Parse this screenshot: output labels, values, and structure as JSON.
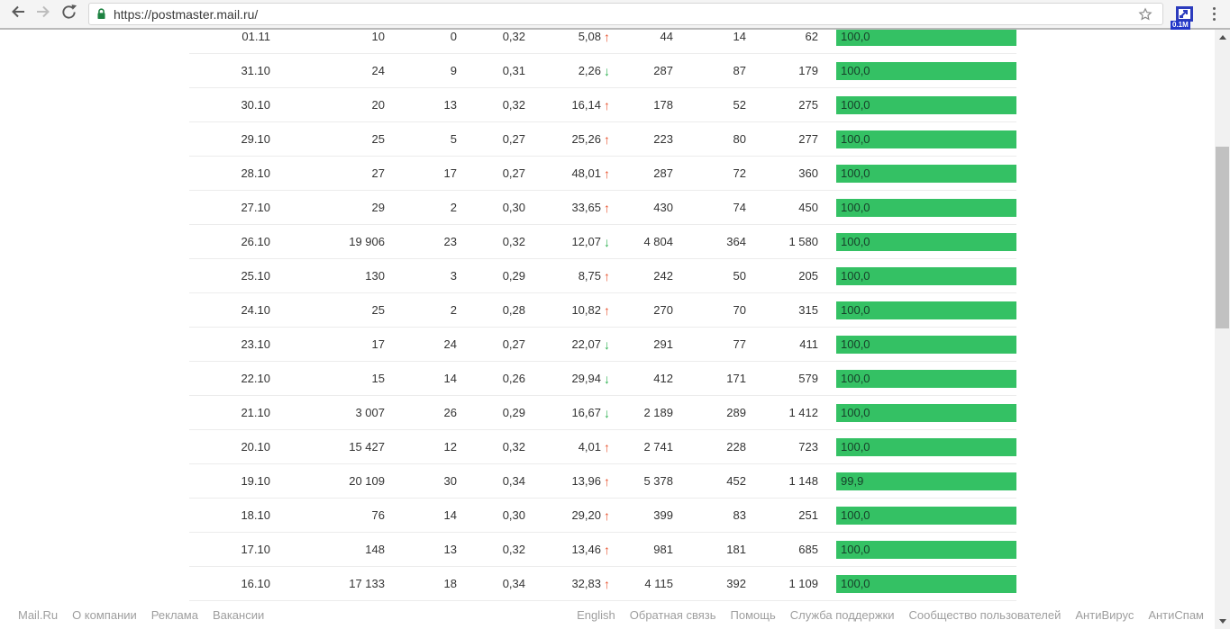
{
  "browser": {
    "url": "https://postmaster.mail.ru/",
    "extension_badge": "0.1M"
  },
  "colors": {
    "bar_green": "#34c164",
    "trend_up": "#e8542f",
    "trend_down": "#2eb151",
    "lock_green": "#1d8241"
  },
  "table": {
    "rows": [
      {
        "date": "01.11",
        "c2": "10",
        "c3": "0",
        "c4": "0,32",
        "trend_value": "5,08",
        "trend": "up",
        "c6": "44",
        "c7": "14",
        "c8": "62",
        "bar_label": "100,0",
        "bar_pct": 100
      },
      {
        "date": "31.10",
        "c2": "24",
        "c3": "9",
        "c4": "0,31",
        "trend_value": "2,26",
        "trend": "down",
        "c6": "287",
        "c7": "87",
        "c8": "179",
        "bar_label": "100,0",
        "bar_pct": 100
      },
      {
        "date": "30.10",
        "c2": "20",
        "c3": "13",
        "c4": "0,32",
        "trend_value": "16,14",
        "trend": "up",
        "c6": "178",
        "c7": "52",
        "c8": "275",
        "bar_label": "100,0",
        "bar_pct": 100
      },
      {
        "date": "29.10",
        "c2": "25",
        "c3": "5",
        "c4": "0,27",
        "trend_value": "25,26",
        "trend": "up",
        "c6": "223",
        "c7": "80",
        "c8": "277",
        "bar_label": "100,0",
        "bar_pct": 100
      },
      {
        "date": "28.10",
        "c2": "27",
        "c3": "17",
        "c4": "0,27",
        "trend_value": "48,01",
        "trend": "up",
        "c6": "287",
        "c7": "72",
        "c8": "360",
        "bar_label": "100,0",
        "bar_pct": 100
      },
      {
        "date": "27.10",
        "c2": "29",
        "c3": "2",
        "c4": "0,30",
        "trend_value": "33,65",
        "trend": "up",
        "c6": "430",
        "c7": "74",
        "c8": "450",
        "bar_label": "100,0",
        "bar_pct": 100
      },
      {
        "date": "26.10",
        "c2": "19 906",
        "c3": "23",
        "c4": "0,32",
        "trend_value": "12,07",
        "trend": "down",
        "c6": "4 804",
        "c7": "364",
        "c8": "1 580",
        "bar_label": "100,0",
        "bar_pct": 100
      },
      {
        "date": "25.10",
        "c2": "130",
        "c3": "3",
        "c4": "0,29",
        "trend_value": "8,75",
        "trend": "up",
        "c6": "242",
        "c7": "50",
        "c8": "205",
        "bar_label": "100,0",
        "bar_pct": 100
      },
      {
        "date": "24.10",
        "c2": "25",
        "c3": "2",
        "c4": "0,28",
        "trend_value": "10,82",
        "trend": "up",
        "c6": "270",
        "c7": "70",
        "c8": "315",
        "bar_label": "100,0",
        "bar_pct": 100
      },
      {
        "date": "23.10",
        "c2": "17",
        "c3": "24",
        "c4": "0,27",
        "trend_value": "22,07",
        "trend": "down",
        "c6": "291",
        "c7": "77",
        "c8": "411",
        "bar_label": "100,0",
        "bar_pct": 100
      },
      {
        "date": "22.10",
        "c2": "15",
        "c3": "14",
        "c4": "0,26",
        "trend_value": "29,94",
        "trend": "down",
        "c6": "412",
        "c7": "171",
        "c8": "579",
        "bar_label": "100,0",
        "bar_pct": 100
      },
      {
        "date": "21.10",
        "c2": "3 007",
        "c3": "26",
        "c4": "0,29",
        "trend_value": "16,67",
        "trend": "down",
        "c6": "2 189",
        "c7": "289",
        "c8": "1 412",
        "bar_label": "100,0",
        "bar_pct": 100
      },
      {
        "date": "20.10",
        "c2": "15 427",
        "c3": "12",
        "c4": "0,32",
        "trend_value": "4,01",
        "trend": "up",
        "c6": "2 741",
        "c7": "228",
        "c8": "723",
        "bar_label": "100,0",
        "bar_pct": 100
      },
      {
        "date": "19.10",
        "c2": "20 109",
        "c3": "30",
        "c4": "0,34",
        "trend_value": "13,96",
        "trend": "up",
        "c6": "5 378",
        "c7": "452",
        "c8": "1 148",
        "bar_label": "99,9",
        "bar_pct": 99.9
      },
      {
        "date": "18.10",
        "c2": "76",
        "c3": "14",
        "c4": "0,30",
        "trend_value": "29,20",
        "trend": "up",
        "c6": "399",
        "c7": "83",
        "c8": "251",
        "bar_label": "100,0",
        "bar_pct": 100
      },
      {
        "date": "17.10",
        "c2": "148",
        "c3": "13",
        "c4": "0,32",
        "trend_value": "13,46",
        "trend": "up",
        "c6": "981",
        "c7": "181",
        "c8": "685",
        "bar_label": "100,0",
        "bar_pct": 100
      },
      {
        "date": "16.10",
        "c2": "17 133",
        "c3": "18",
        "c4": "0,34",
        "trend_value": "32,83",
        "trend": "up",
        "c6": "4 115",
        "c7": "392",
        "c8": "1 109",
        "bar_label": "100,0",
        "bar_pct": 100
      }
    ]
  },
  "footer": {
    "left_links": [
      "Mail.Ru",
      "О компании",
      "Реклама",
      "Вакансии"
    ],
    "right_links": [
      "English",
      "Обратная связь",
      "Помощь",
      "Служба поддержки",
      "Сообщество пользователей",
      "АнтиВирус",
      "АнтиСпам"
    ]
  }
}
